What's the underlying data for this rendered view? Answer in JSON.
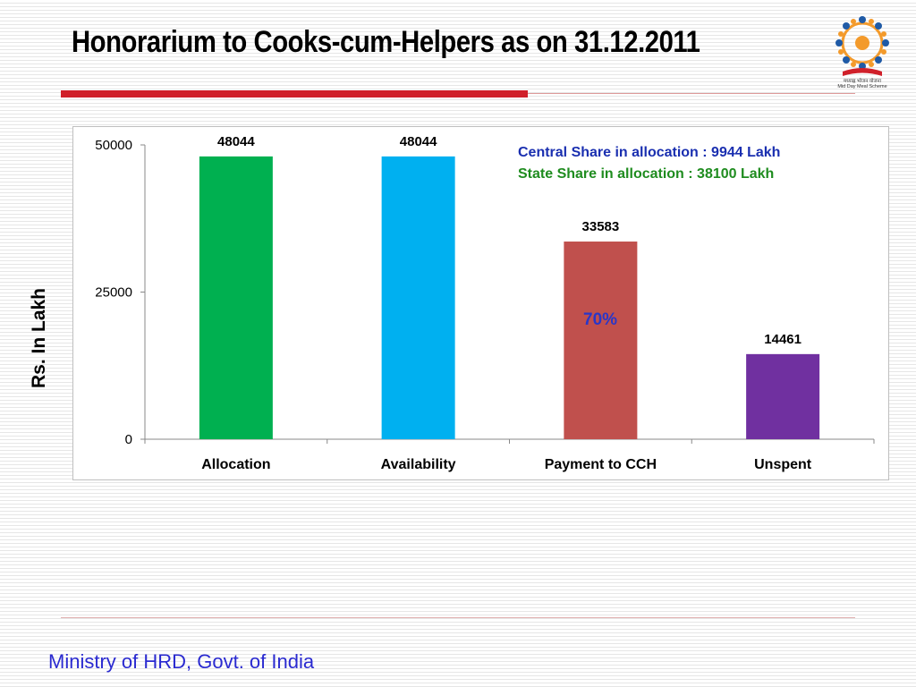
{
  "slide": {
    "title": "Honorarium to Cooks-cum-Helpers as on 31.12.2011",
    "footer": "Ministry of HRD, Govt. of India"
  },
  "logo": {
    "icon": "mid-day-meal-logo",
    "caption_line1": "मध्याह्न भोजन योजना",
    "caption_line2": "Mid Day Meal Scheme"
  },
  "annotations": {
    "central_share": "Central Share in allocation : 9944 Lakh",
    "state_share": "State Share in allocation :  38100 Lakh",
    "payment_percent": "70%"
  },
  "colors": {
    "title_rule": "#d0202a",
    "central_text": "#1a2fb0",
    "state_text": "#1f8c1f",
    "percent_text": "#2a36c8"
  },
  "chart_data": {
    "type": "bar",
    "categories": [
      "Allocation",
      "Availability",
      "Payment to CCH",
      "Unspent"
    ],
    "values": [
      48044,
      48044,
      33583,
      14461
    ],
    "bar_colors": [
      "#00b050",
      "#00b0f0",
      "#c0504d",
      "#7030a0"
    ],
    "data_labels": [
      "48044",
      "48044",
      "33583",
      "14461"
    ],
    "ylabel": "Rs. In Lakh",
    "xlabel": "",
    "ylim": [
      0,
      50000
    ],
    "yticks": [
      0,
      25000,
      50000
    ],
    "ytick_labels": [
      "0",
      "25000",
      "50000"
    ],
    "grid": false,
    "legend": "none"
  }
}
